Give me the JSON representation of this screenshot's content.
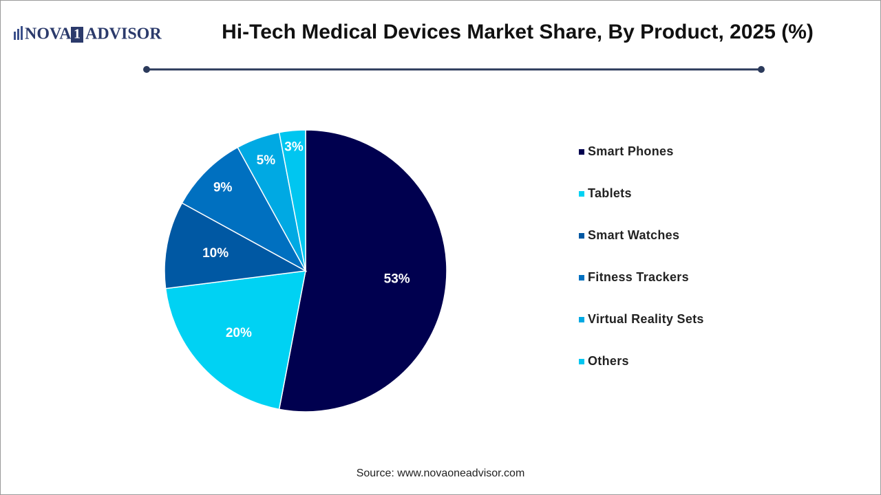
{
  "chart_data": {
    "type": "pie",
    "brand": [
      "NOVA",
      "1",
      "ADVISOR"
    ],
    "title": "Hi-Tech Medical Devices Market Share, By Product, 2025 (%)",
    "categories": [
      "Smart Phones",
      "Tablets",
      "Smart Watches",
      "Fitness Trackers",
      "Virtual Reality Sets",
      "Others"
    ],
    "values": [
      53,
      20,
      10,
      9,
      5,
      3
    ],
    "value_labels": [
      "53%",
      "20%",
      "10%",
      "9%",
      "5%",
      "3%"
    ],
    "colors": [
      "#00004f",
      "#00d2f3",
      "#0058a3",
      "#0070c0",
      "#00a9e3",
      "#00c6f0"
    ],
    "legend": "right",
    "source": "Source: www.novaoneadvisor.com"
  }
}
